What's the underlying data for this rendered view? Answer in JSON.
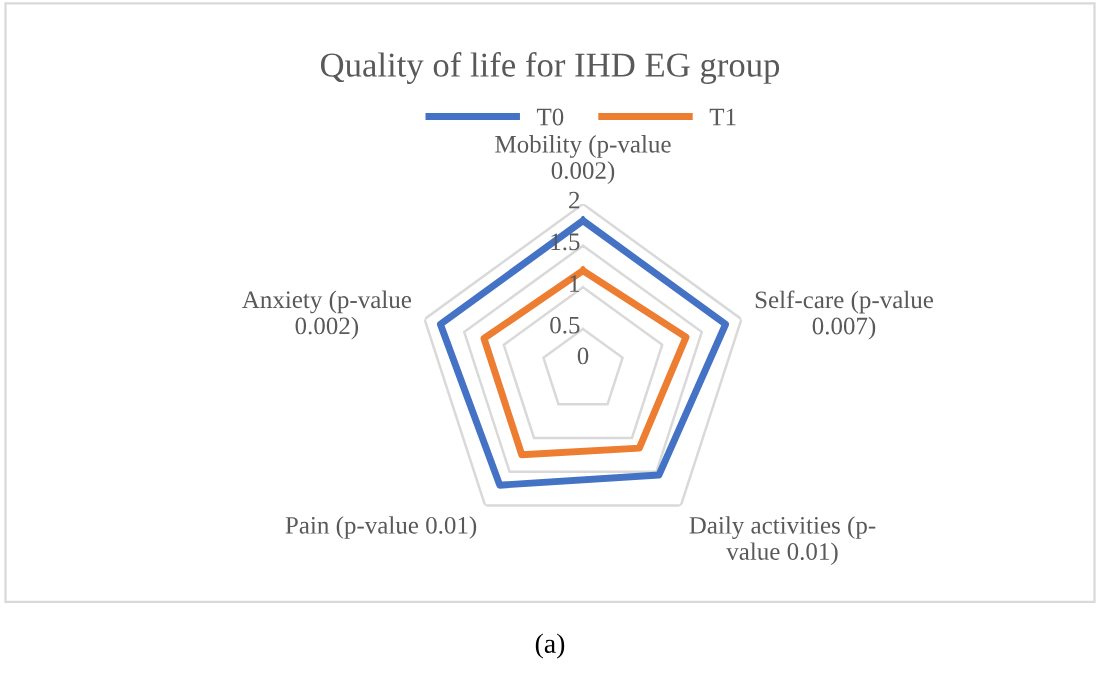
{
  "chart_data": {
    "type": "radar",
    "title": "Quality of life for IHD EG group",
    "categories": [
      "Mobility (p-value\n0.002)",
      "Self-care (p-value\n0.007)",
      "Daily activities (p-\nvalue 0.01)",
      "Pain (p-value 0.01)",
      "Anxiety (p-value\n0.002)"
    ],
    "series": [
      {
        "name": "T0",
        "color": "#4472c4",
        "values": [
          1.8,
          1.8,
          1.55,
          1.7,
          1.8
        ]
      },
      {
        "name": "T1",
        "color": "#ed7d31",
        "values": [
          1.2,
          1.3,
          1.15,
          1.25,
          1.25
        ]
      }
    ],
    "ylim": [
      0,
      2
    ],
    "yticks": [
      0,
      0.5,
      1,
      1.5,
      2
    ],
    "legend": "top",
    "grid": true,
    "annotations": [
      "(a)"
    ]
  }
}
